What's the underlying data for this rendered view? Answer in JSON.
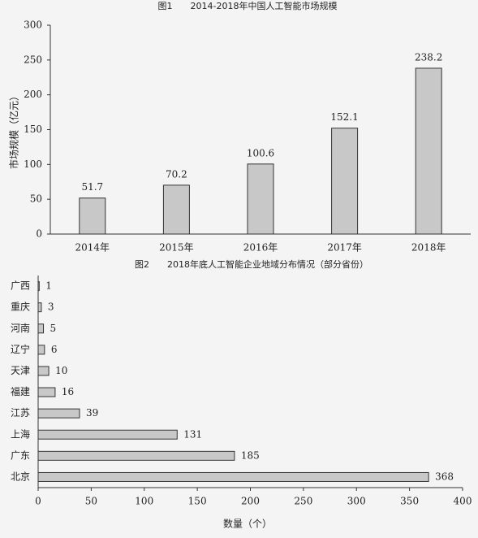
{
  "chart_data": [
    {
      "type": "bar",
      "title": "图1　　2014-2018年中国人工智能市场规模",
      "y_label": "市场规模（亿元）",
      "categories": [
        "2014年",
        "2015年",
        "2016年",
        "2017年",
        "2018年"
      ],
      "values": [
        51.7,
        70.2,
        100.6,
        152.1,
        238.2
      ],
      "color": "#c8c8c8",
      "ylim": [
        0,
        300
      ],
      "yticks": [
        0,
        50,
        100,
        150,
        200,
        250,
        300
      ],
      "grid": false
    },
    {
      "type": "barh",
      "title": "图2　　2018年底人工智能企业地域分布情况（部分省份）",
      "x_label": "数量（个）",
      "categories": [
        "广西",
        "重庆",
        "河南",
        "辽宁",
        "天津",
        "福建",
        "江苏",
        "上海",
        "广东",
        "北京"
      ],
      "values": [
        1,
        3,
        5,
        6,
        10,
        16,
        39,
        131,
        185,
        368
      ],
      "color": "#c8c8c8",
      "xlim": [
        0,
        400
      ],
      "xticks": [
        0,
        50,
        100,
        150,
        200,
        250,
        300,
        350,
        400
      ],
      "grid": false
    }
  ]
}
